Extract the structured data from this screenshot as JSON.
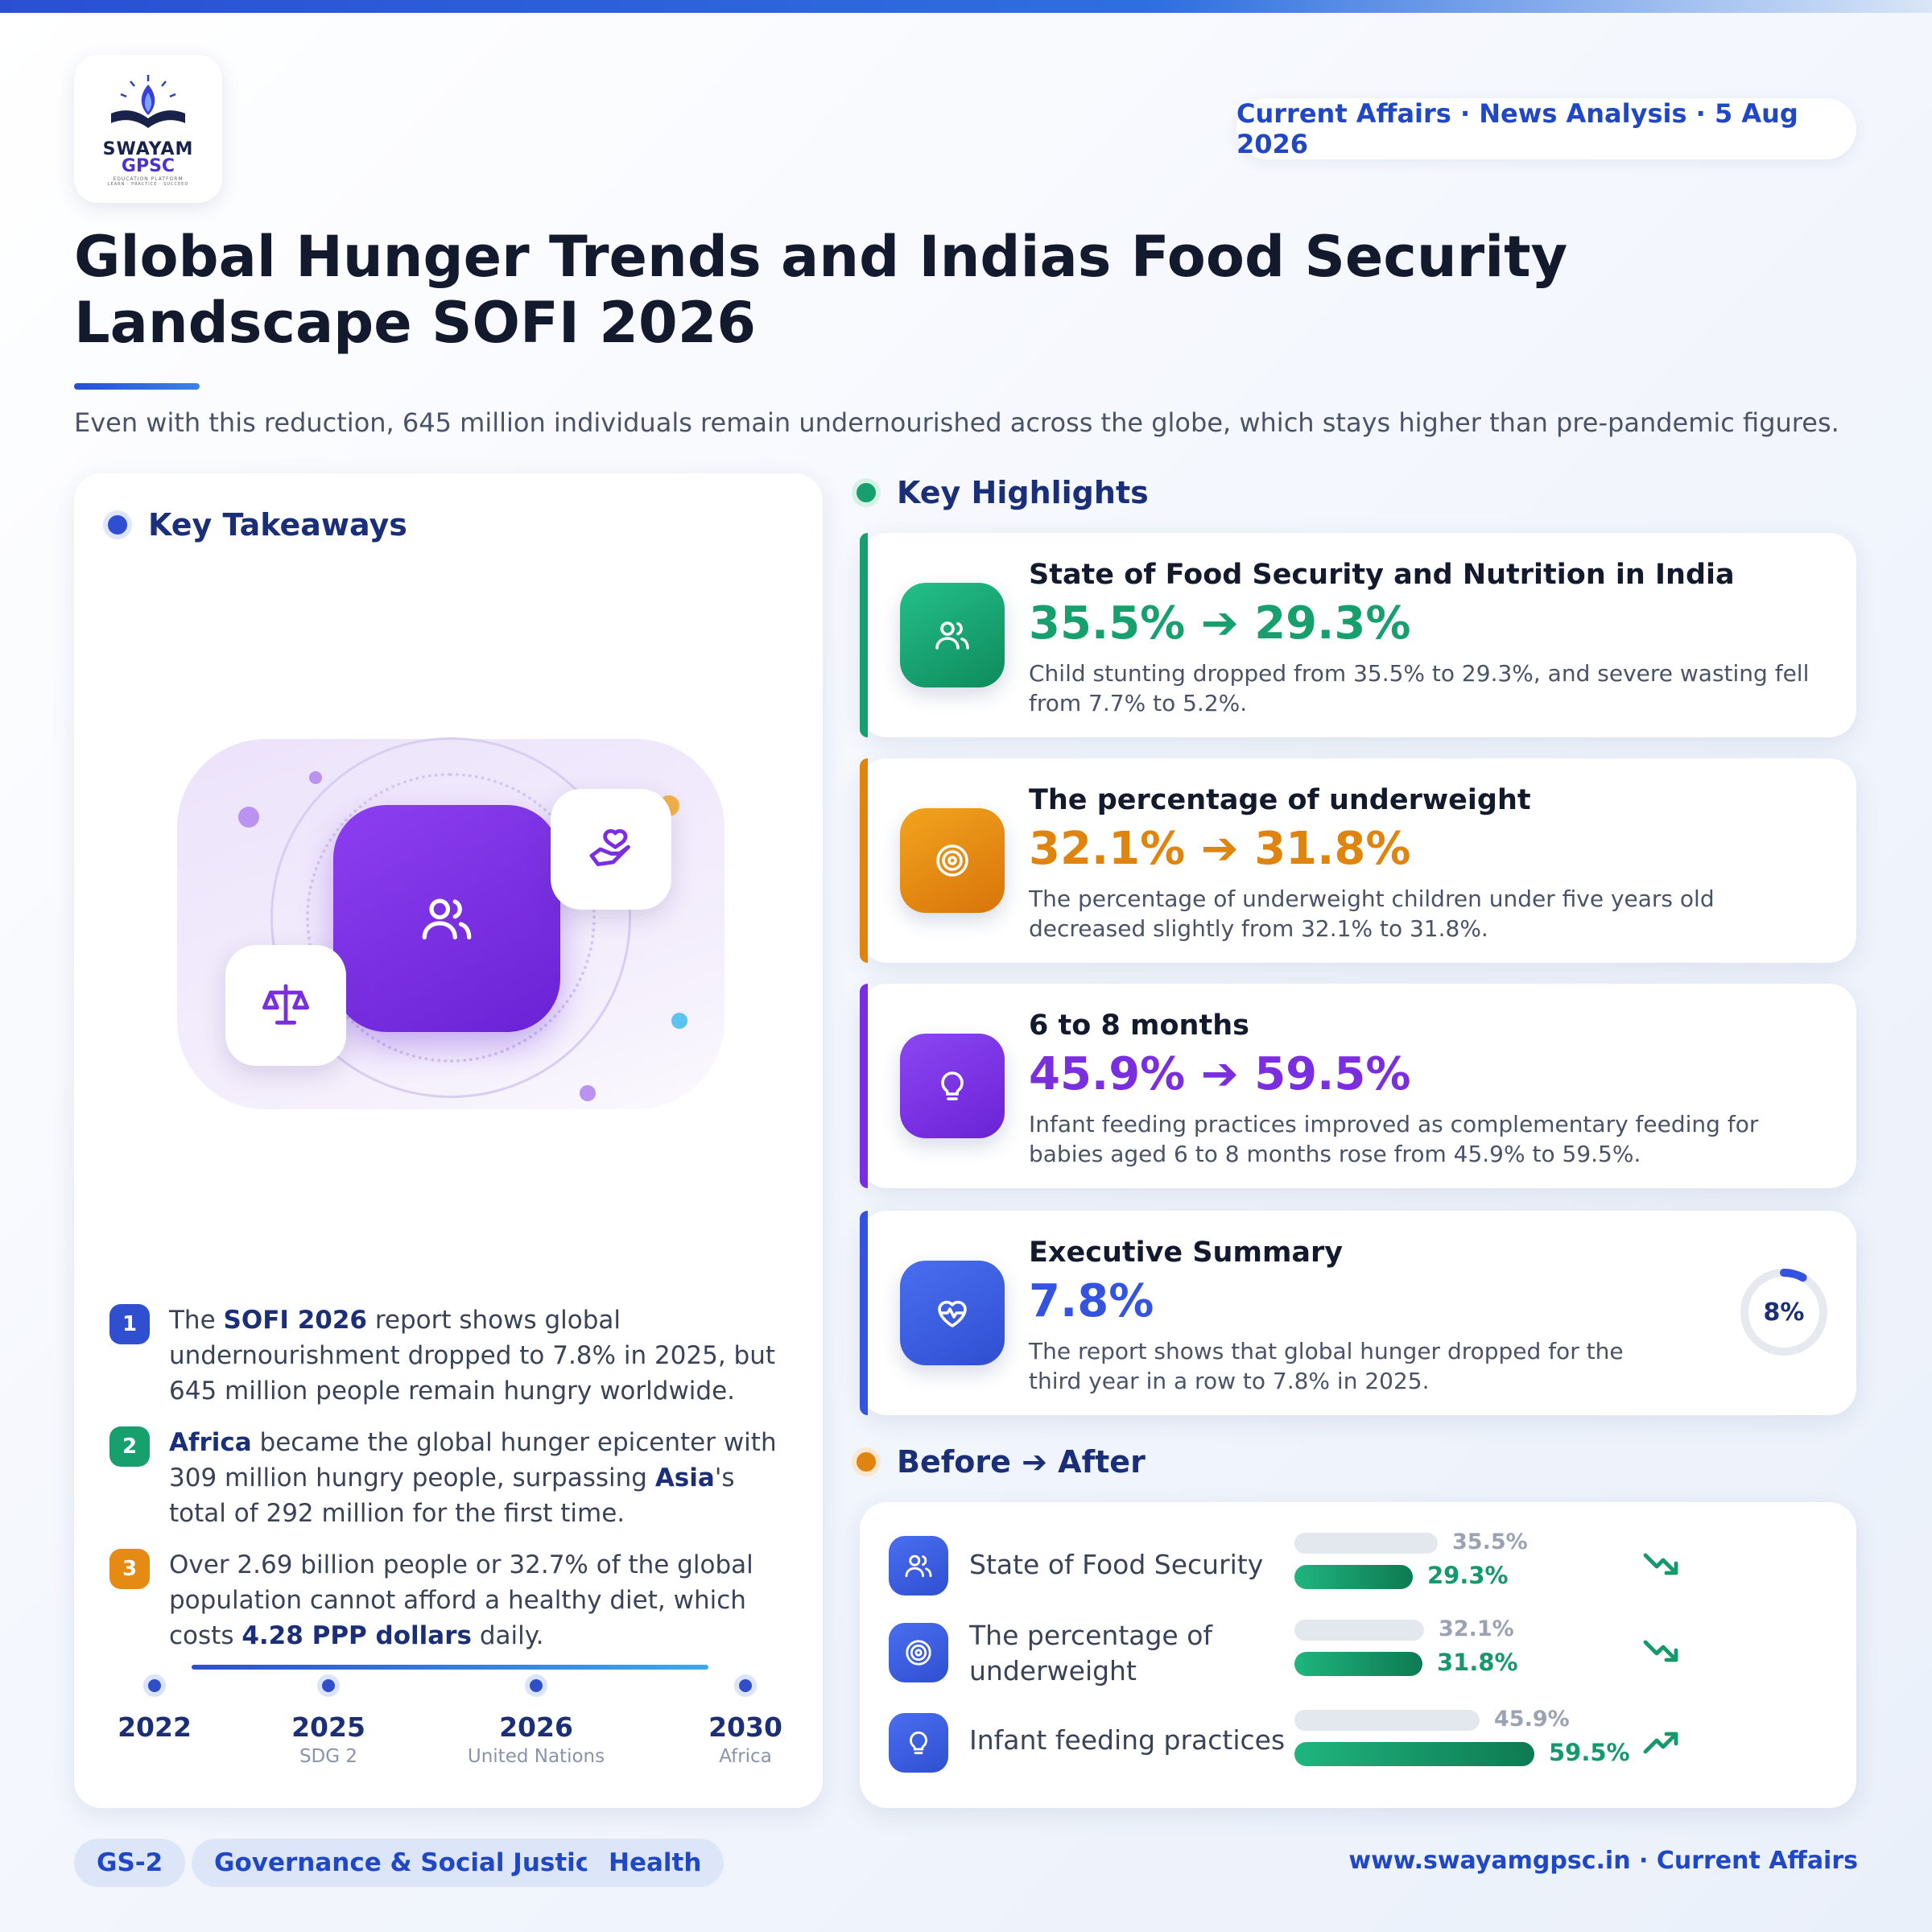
{
  "brand": {
    "logo_word1": "SWAYAM",
    "logo_word2": "GPSC",
    "logo_tagline": "EDUCATION PLATFORM",
    "logo_motto": "LEARN · PRACTICE · SUCCEED",
    "accent": "#1f47c6"
  },
  "header": {
    "tag": "Current Affairs · News Analysis · 5 Aug 2026",
    "title": "Global Hunger Trends and Indias Food Security Landscape SOFI 2026",
    "subtitle": "Even with this reduction, 645 million individuals remain undernourished across the globe, which stays higher than pre-pandemic figures."
  },
  "takeaways": {
    "heading": "Key Takeaways",
    "items": [
      {
        "num": "1",
        "pre": "The ",
        "b1": "SOFI 2026",
        "mid": " report shows global undernourishment dropped to 7.8% in 2025, but 645 million people remain hungry worldwide.",
        "b2": "",
        "post": "",
        "color": "#2f4fd0"
      },
      {
        "num": "2",
        "pre": "",
        "b1": "Africa",
        "mid": " became the global hunger epicenter with 309 million hungry people, surpassing ",
        "b2": "Asia",
        "post": "'s total of 292 million for the first time.",
        "color": "#17a06e"
      },
      {
        "num": "3",
        "pre": "Over 2.69 billion people or 32.7% of the global population cannot afford a healthy diet, which costs ",
        "b1": "4.28 PPP dollars",
        "mid": " daily.",
        "b2": "",
        "post": "",
        "color": "#e58a12"
      }
    ],
    "timeline": [
      {
        "year": "2022",
        "sub": ""
      },
      {
        "year": "2025",
        "sub": "SDG 2"
      },
      {
        "year": "2026",
        "sub": "United Nations"
      },
      {
        "year": "2030",
        "sub": "Africa"
      }
    ]
  },
  "highlights": {
    "heading": "Key Highlights",
    "items": [
      {
        "title": "State of Food Security and Nutrition in India",
        "value": "35.5% ➔ 29.3%",
        "desc": "Child stunting dropped from 35.5% to 29.3%, and severe wasting fell from 7.7% to 5.2%.",
        "color": "#17a06e",
        "icon": "users-icon"
      },
      {
        "title": "The percentage of underweight",
        "value": "32.1% ➔ 31.8%",
        "desc": "The percentage of underweight children under five years old decreased slightly from 32.1% to 31.8%.",
        "color": "#e08410",
        "icon": "target-icon"
      },
      {
        "title": "6 to 8 months",
        "value": "45.9% ➔ 59.5%",
        "desc": "Infant feeding practices improved as complementary feeding for babies aged 6 to 8 months rose from 45.9% to 59.5%.",
        "color": "#7a2ee0",
        "icon": "lightbulb-icon"
      },
      {
        "title": "Executive Summary",
        "value": "7.8%",
        "desc": "The report shows that global hunger dropped for the third year in a row to 7.8% in 2025.",
        "color": "#3454e0",
        "icon": "heart-pulse-icon",
        "gauge_label": "8%",
        "gauge_fraction": 0.08
      }
    ]
  },
  "before_after": {
    "heading": "Before ➔ After",
    "rows": [
      {
        "label": "State of Food Security",
        "before": "35.5%",
        "after": "29.3%",
        "before_value": 35.5,
        "after_value": 29.3,
        "trend": "down"
      },
      {
        "label": "The percentage of underweight",
        "before": "32.1%",
        "after": "31.8%",
        "before_value": 32.1,
        "after_value": 31.8,
        "trend": "down"
      },
      {
        "label": "Infant feeding practices",
        "before": "45.9%",
        "after": "59.5%",
        "before_value": 45.9,
        "after_value": 59.5,
        "trend": "up"
      }
    ]
  },
  "footer": {
    "chips": [
      "GS-2",
      "Governance & Social Justice",
      "Health"
    ],
    "site": "www.swayamgpsc.in · Current Affairs"
  }
}
